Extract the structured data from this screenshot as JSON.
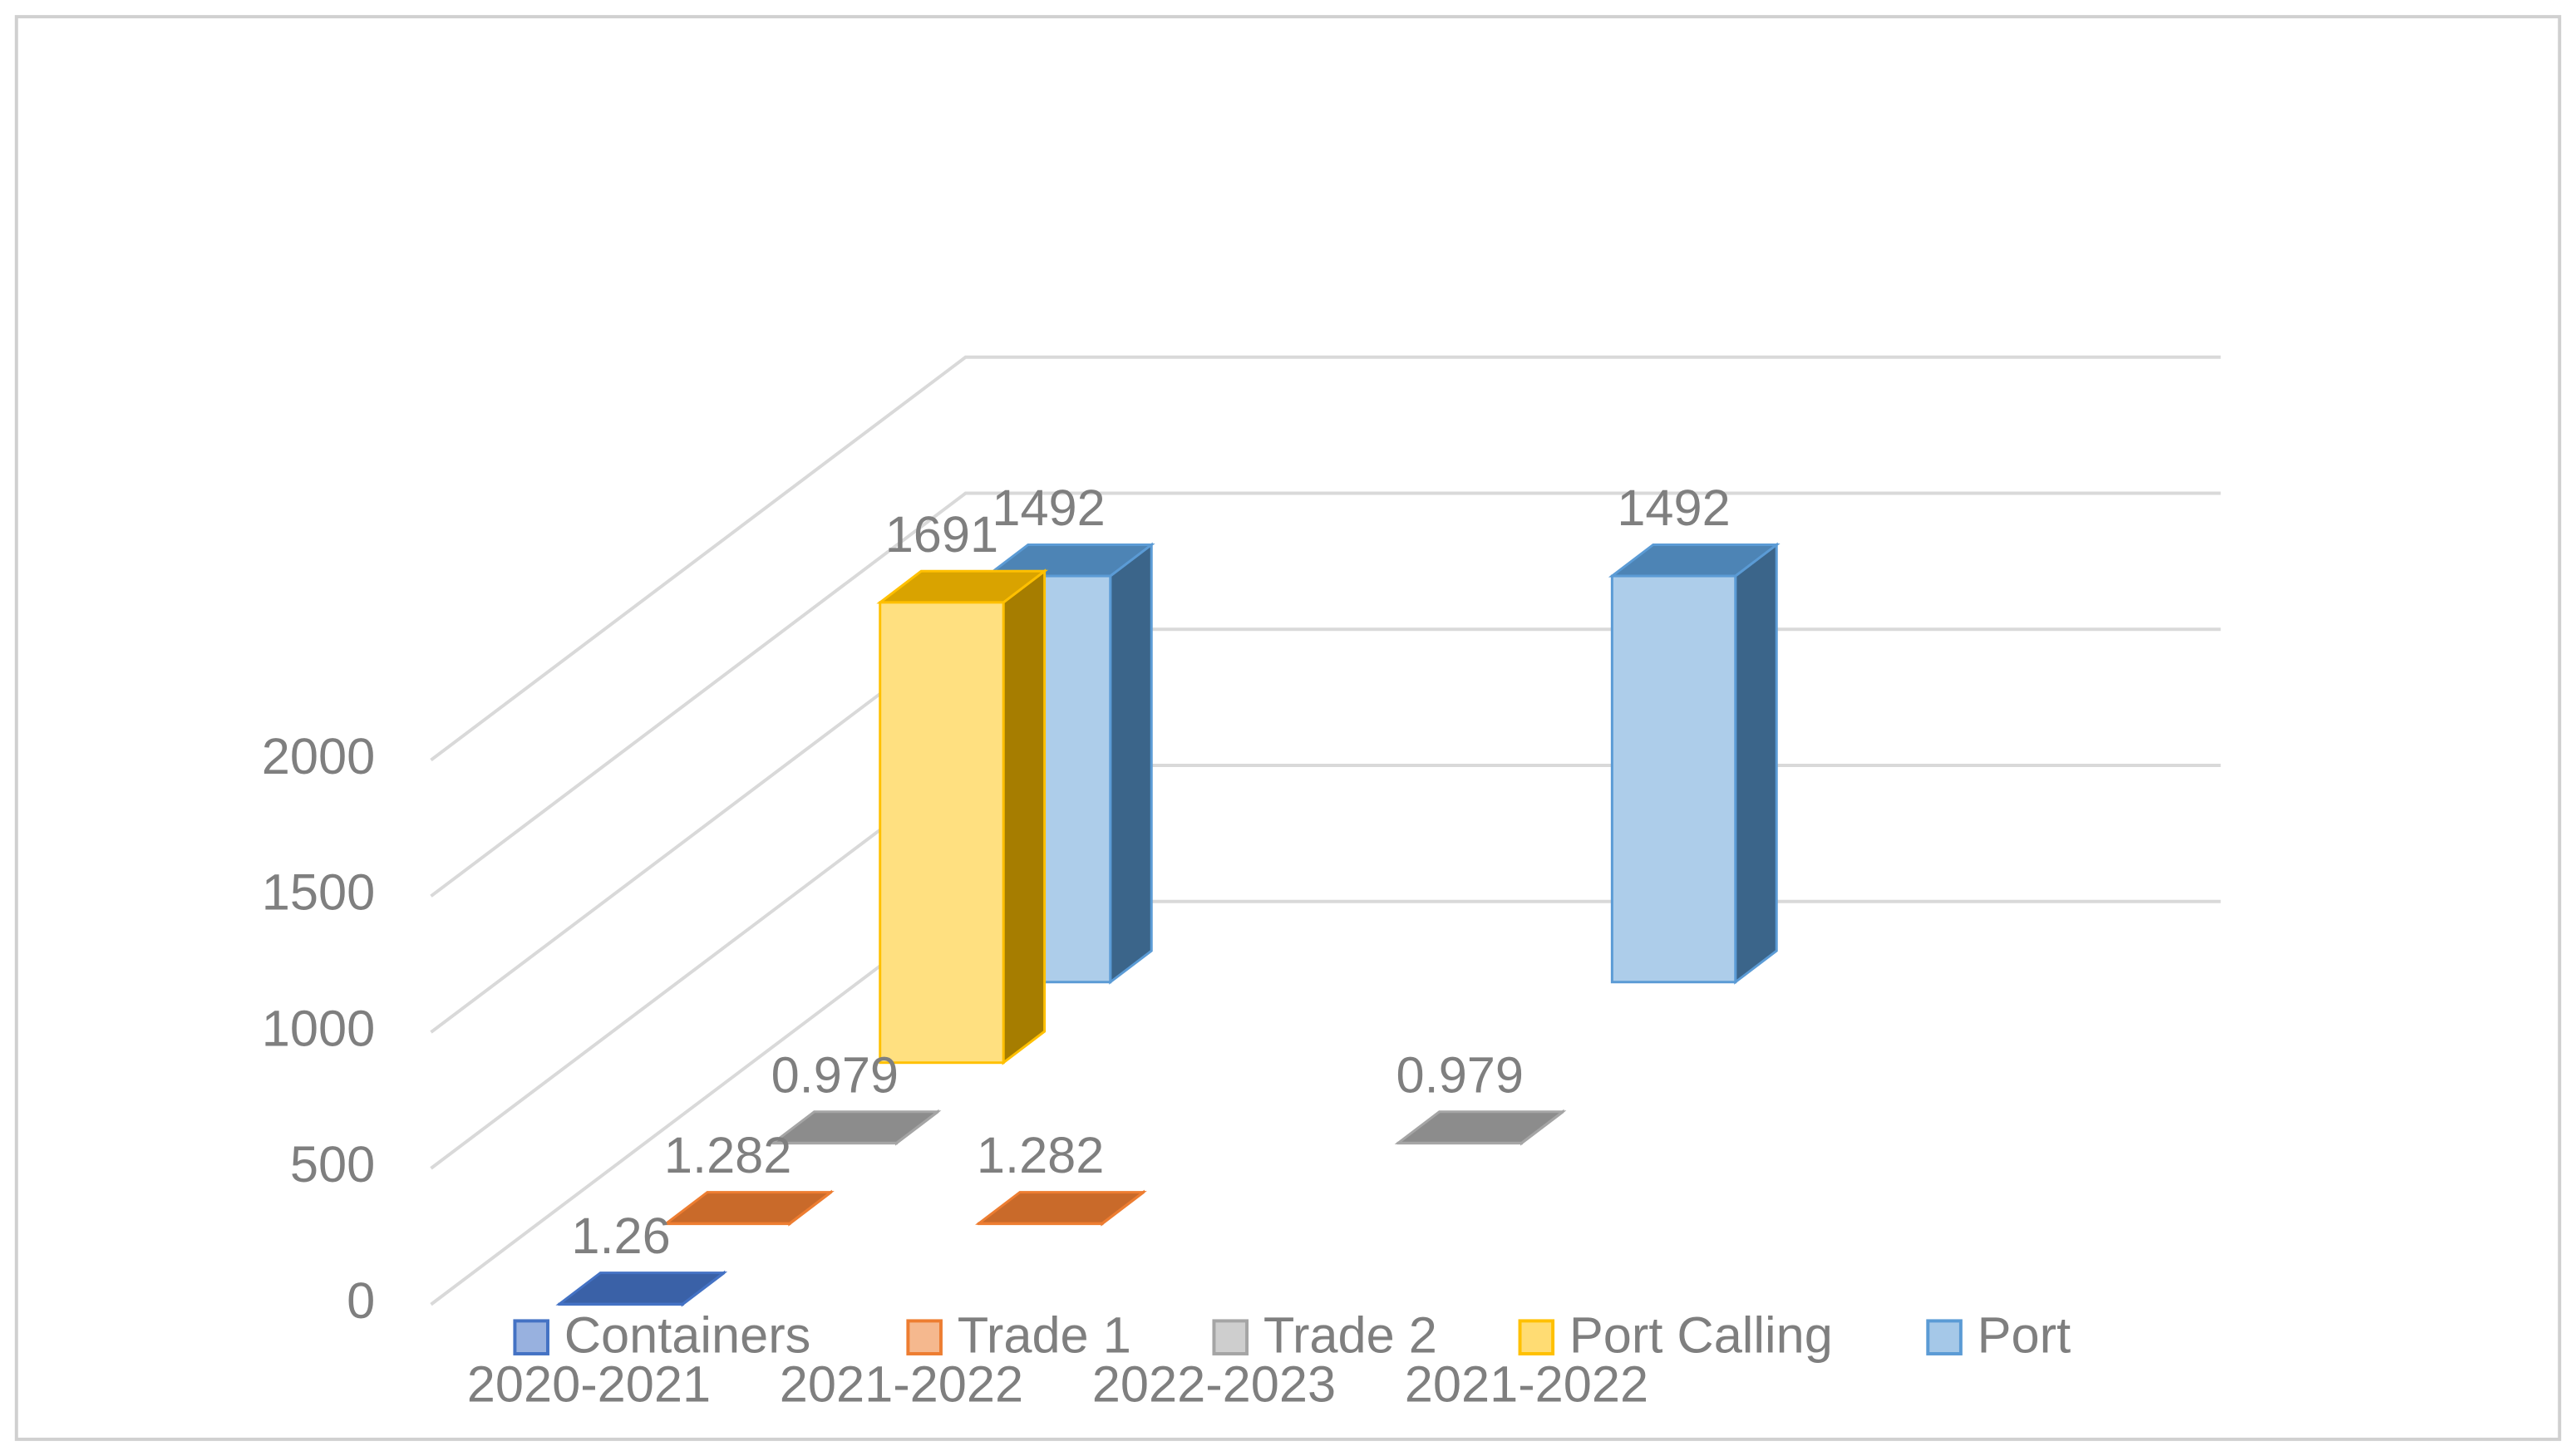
{
  "chart_data": {
    "type": "bar3d",
    "categories": [
      "2020-2021",
      "2021-2022",
      "2022-2023",
      "2021-2022"
    ],
    "series": [
      {
        "name": "Containers",
        "color": "#4472c4",
        "values": [
          1.26,
          null,
          null,
          null
        ]
      },
      {
        "name": "Trade 1",
        "color": "#ed7d31",
        "values": [
          1.282,
          1.282,
          null,
          null
        ]
      },
      {
        "name": "Trade 2",
        "color": "#a5a5a5",
        "values": [
          0.979,
          null,
          0.979,
          null
        ]
      },
      {
        "name": "Port Calling",
        "color": "#ffc000",
        "values": [
          1691,
          null,
          null,
          null
        ]
      },
      {
        "name": "Port",
        "color": "#5b9bd5",
        "values": [
          1492,
          null,
          1492,
          null
        ]
      }
    ],
    "ylim": [
      0,
      2000
    ],
    "yticks": [
      0,
      500,
      1000,
      1500,
      2000
    ],
    "grid": true,
    "legend": "bottom"
  }
}
